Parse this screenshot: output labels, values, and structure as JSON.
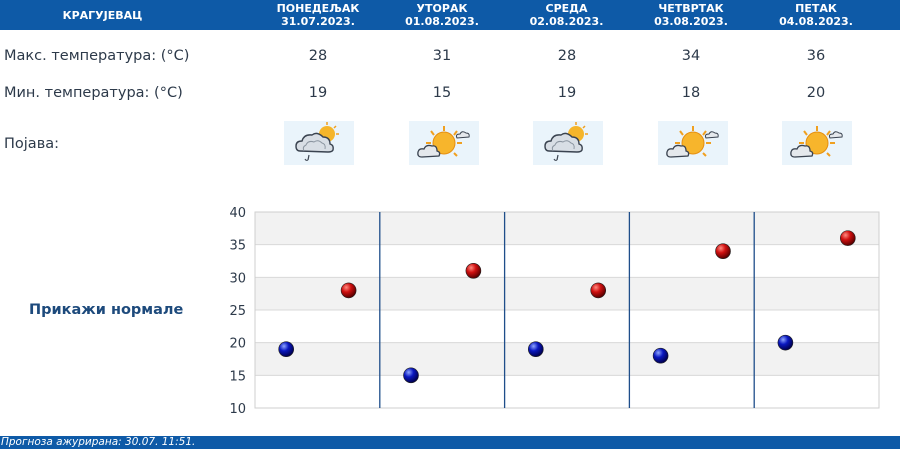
{
  "header": {
    "city": "КРАГУЈЕВАЦ",
    "days": [
      {
        "name": "ПОНЕДЕЉАК",
        "date": "31.07.2023."
      },
      {
        "name": "УТОРАК",
        "date": "01.08.2023."
      },
      {
        "name": "СРЕДА",
        "date": "02.08.2023."
      },
      {
        "name": "ЧЕТВРТАК",
        "date": "03.08.2023."
      },
      {
        "name": "ПЕТАК",
        "date": "04.08.2023."
      }
    ]
  },
  "rows": {
    "max_label": "Макс. температура: (°C)",
    "min_label": "Мин. температура: (°C)",
    "phenomenon_label": "Појава:",
    "max": [
      "28",
      "31",
      "28",
      "34",
      "36"
    ],
    "min": [
      "19",
      "15",
      "19",
      "18",
      "20"
    ],
    "icons": [
      "partly-cloudy-light-rain-icon",
      "sunny-cloudy-icon",
      "partly-cloudy-light-rain-icon",
      "sunny-cloudy-icon",
      "sunny-cloudy-icon"
    ]
  },
  "normals_button": "Прикажи нормале",
  "footer": {
    "text": "Прогноза ажурирана:  30.07.  11:51."
  },
  "colors": {
    "header_bg": "#0e5aa7",
    "max_marker": "#c00000",
    "min_marker": "#0000a0",
    "day_separator": "#1f4e8a"
  },
  "chart_data": {
    "type": "scatter",
    "categories": [
      "31.07.2023.",
      "01.08.2023.",
      "02.08.2023.",
      "03.08.2023.",
      "04.08.2023."
    ],
    "series": [
      {
        "values": [
          28,
          31,
          28,
          34,
          36
        ],
        "color": "#c00000"
      },
      {
        "values": [
          19,
          15,
          19,
          18,
          20
        ],
        "color": "#0000a0"
      }
    ],
    "ylim": [
      10,
      40
    ],
    "yticks": [
      "10",
      "15",
      "20",
      "25",
      "30",
      "35",
      "40"
    ],
    "grid": true
  }
}
